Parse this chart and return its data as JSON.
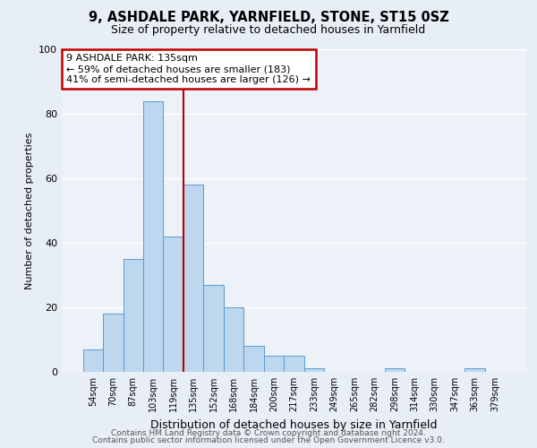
{
  "title": "9, ASHDALE PARK, YARNFIELD, STONE, ST15 0SZ",
  "subtitle": "Size of property relative to detached houses in Yarnfield",
  "xlabel": "Distribution of detached houses by size in Yarnfield",
  "ylabel": "Number of detached properties",
  "bin_labels": [
    "54sqm",
    "70sqm",
    "87sqm",
    "103sqm",
    "119sqm",
    "135sqm",
    "152sqm",
    "168sqm",
    "184sqm",
    "200sqm",
    "217sqm",
    "233sqm",
    "249sqm",
    "265sqm",
    "282sqm",
    "298sqm",
    "314sqm",
    "330sqm",
    "347sqm",
    "363sqm",
    "379sqm"
  ],
  "bar_values": [
    7,
    18,
    35,
    84,
    42,
    58,
    27,
    20,
    8,
    5,
    5,
    1,
    0,
    0,
    0,
    1,
    0,
    0,
    0,
    1,
    0
  ],
  "bar_color": "#bdd7ee",
  "bar_edge_color": "#5b9bd5",
  "vline_x_idx": 5,
  "vline_color": "#c00000",
  "annotation_title": "9 ASHDALE PARK: 135sqm",
  "annotation_line1": "← 59% of detached houses are smaller (183)",
  "annotation_line2": "41% of semi-detached houses are larger (126) →",
  "annotation_box_color": "#c00000",
  "ylim": [
    0,
    100
  ],
  "yticks": [
    0,
    20,
    40,
    60,
    80,
    100
  ],
  "footer1": "Contains HM Land Registry data © Crown copyright and database right 2024.",
  "footer2": "Contains public sector information licensed under the Open Government Licence v3.0.",
  "bg_color": "#e8eef5",
  "plot_bg_color": "#edf2f8"
}
